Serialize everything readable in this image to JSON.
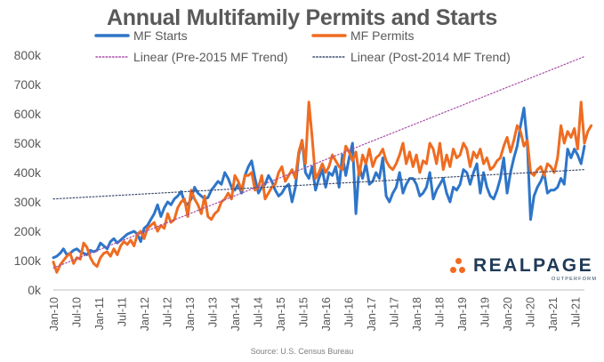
{
  "chart_data": {
    "type": "line",
    "title": "Annual Multifamily Permits and Starts",
    "source": "Source: U.S. Census Bureau",
    "ylim": [
      0,
      800000
    ],
    "y_ticks": [
      "0k",
      "100k",
      "200k",
      "300k",
      "400k",
      "500k",
      "600k",
      "700k",
      "800k"
    ],
    "x_tick_labels": [
      "Jan-10",
      "Jul-10",
      "Jan-11",
      "Jul-11",
      "Jan-12",
      "Jul-12",
      "Jan-13",
      "Jul-13",
      "Jan-14",
      "Jul-14",
      "Jan-15",
      "Jul-15",
      "Jan-16",
      "Jul-16",
      "Jan-17",
      "Jul-17",
      "Jan-18",
      "Jul-18",
      "Jan-19",
      "Jul-19",
      "Jan-20",
      "Jul-20",
      "Jan-21",
      "Jul-21"
    ],
    "x_start": "Jan-10",
    "x_end": "Sep-21",
    "grid": false,
    "legend_position": "top",
    "series": [
      {
        "name": "MF Starts",
        "color": "#2e75c8",
        "style": "solid",
        "values": [
          110,
          115,
          125,
          140,
          120,
          125,
          135,
          140,
          130,
          125,
          120,
          135,
          130,
          135,
          160,
          150,
          140,
          165,
          175,
          160,
          170,
          180,
          190,
          195,
          200,
          190,
          165,
          210,
          220,
          240,
          260,
          290,
          250,
          280,
          300,
          290,
          310,
          320,
          335,
          300,
          290,
          310,
          350,
          330,
          320,
          310,
          315,
          340,
          355,
          370,
          360,
          400,
          380,
          350,
          340,
          360,
          330,
          390,
          420,
          440,
          380,
          330,
          350,
          360,
          390,
          370,
          340,
          320,
          330,
          350,
          360,
          300,
          350,
          460,
          510,
          400,
          380,
          420,
          340,
          380,
          410,
          350,
          400,
          390,
          420,
          350,
          460,
          390,
          450,
          500,
          260,
          420,
          380,
          430,
          360,
          370,
          400,
          380,
          450,
          320,
          300,
          330,
          350,
          400,
          330,
          360,
          380,
          380,
          360,
          320,
          330,
          350,
          400,
          310,
          340,
          360,
          380,
          330,
          300,
          350,
          340,
          360,
          410,
          400,
          360,
          400,
          430,
          330,
          400,
          350,
          320,
          310,
          340,
          380,
          450,
          330,
          400,
          450,
          490,
          560,
          620,
          500,
          240,
          320,
          350,
          370,
          400,
          330,
          340,
          340,
          350,
          380,
          360,
          480,
          450,
          480,
          460,
          430,
          490
        ]
      },
      {
        "name": "MF Permits",
        "color": "#ef6c21",
        "style": "solid",
        "values": [
          95,
          60,
          85,
          100,
          115,
          125,
          90,
          110,
          105,
          160,
          145,
          110,
          90,
          80,
          110,
          125,
          130,
          115,
          140,
          120,
          150,
          165,
          155,
          170,
          150,
          190,
          200,
          175,
          210,
          220,
          230,
          200,
          220,
          210,
          260,
          230,
          240,
          280,
          300,
          310,
          250,
          340,
          310,
          290,
          260,
          320,
          250,
          240,
          260,
          270,
          300,
          310,
          330,
          310,
          390,
          370,
          340,
          390,
          390,
          400,
          340,
          350,
          390,
          310,
          330,
          350,
          360,
          400,
          420,
          370,
          390,
          410,
          380,
          470,
          510,
          430,
          640,
          520,
          380,
          400,
          430,
          400,
          420,
          460,
          440,
          420,
          410,
          490,
          470,
          440,
          470,
          390,
          460,
          430,
          480,
          420,
          450,
          460,
          480,
          440,
          420,
          410,
          430,
          460,
          500,
          430,
          470,
          420,
          460,
          400,
          440,
          430,
          500,
          480,
          430,
          500,
          410,
          460,
          420,
          480,
          450,
          460,
          500,
          480,
          420,
          470,
          450,
          480,
          430,
          450,
          410,
          420,
          440,
          450,
          490,
          520,
          470,
          510,
          560,
          540,
          490,
          510,
          400,
          390,
          410,
          420,
          390,
          430,
          420,
          400,
          450,
          560,
          500,
          540,
          520,
          550,
          480,
          640,
          500,
          540,
          560
        ]
      },
      {
        "name": "Linear (Pre-2015 MF Trend)",
        "color": "#a64ca6",
        "style": "dotted",
        "values": [
          75,
          795
        ]
      },
      {
        "name": "Linear (Post-2014 MF Trend)",
        "color": "#3b4a6b",
        "style": "dotted",
        "values": [
          310,
          410
        ]
      }
    ]
  },
  "branding": {
    "logo_word": "REALPAGE",
    "logo_tagline": "OUTPERFORM",
    "logo_color": "#f26b21"
  }
}
